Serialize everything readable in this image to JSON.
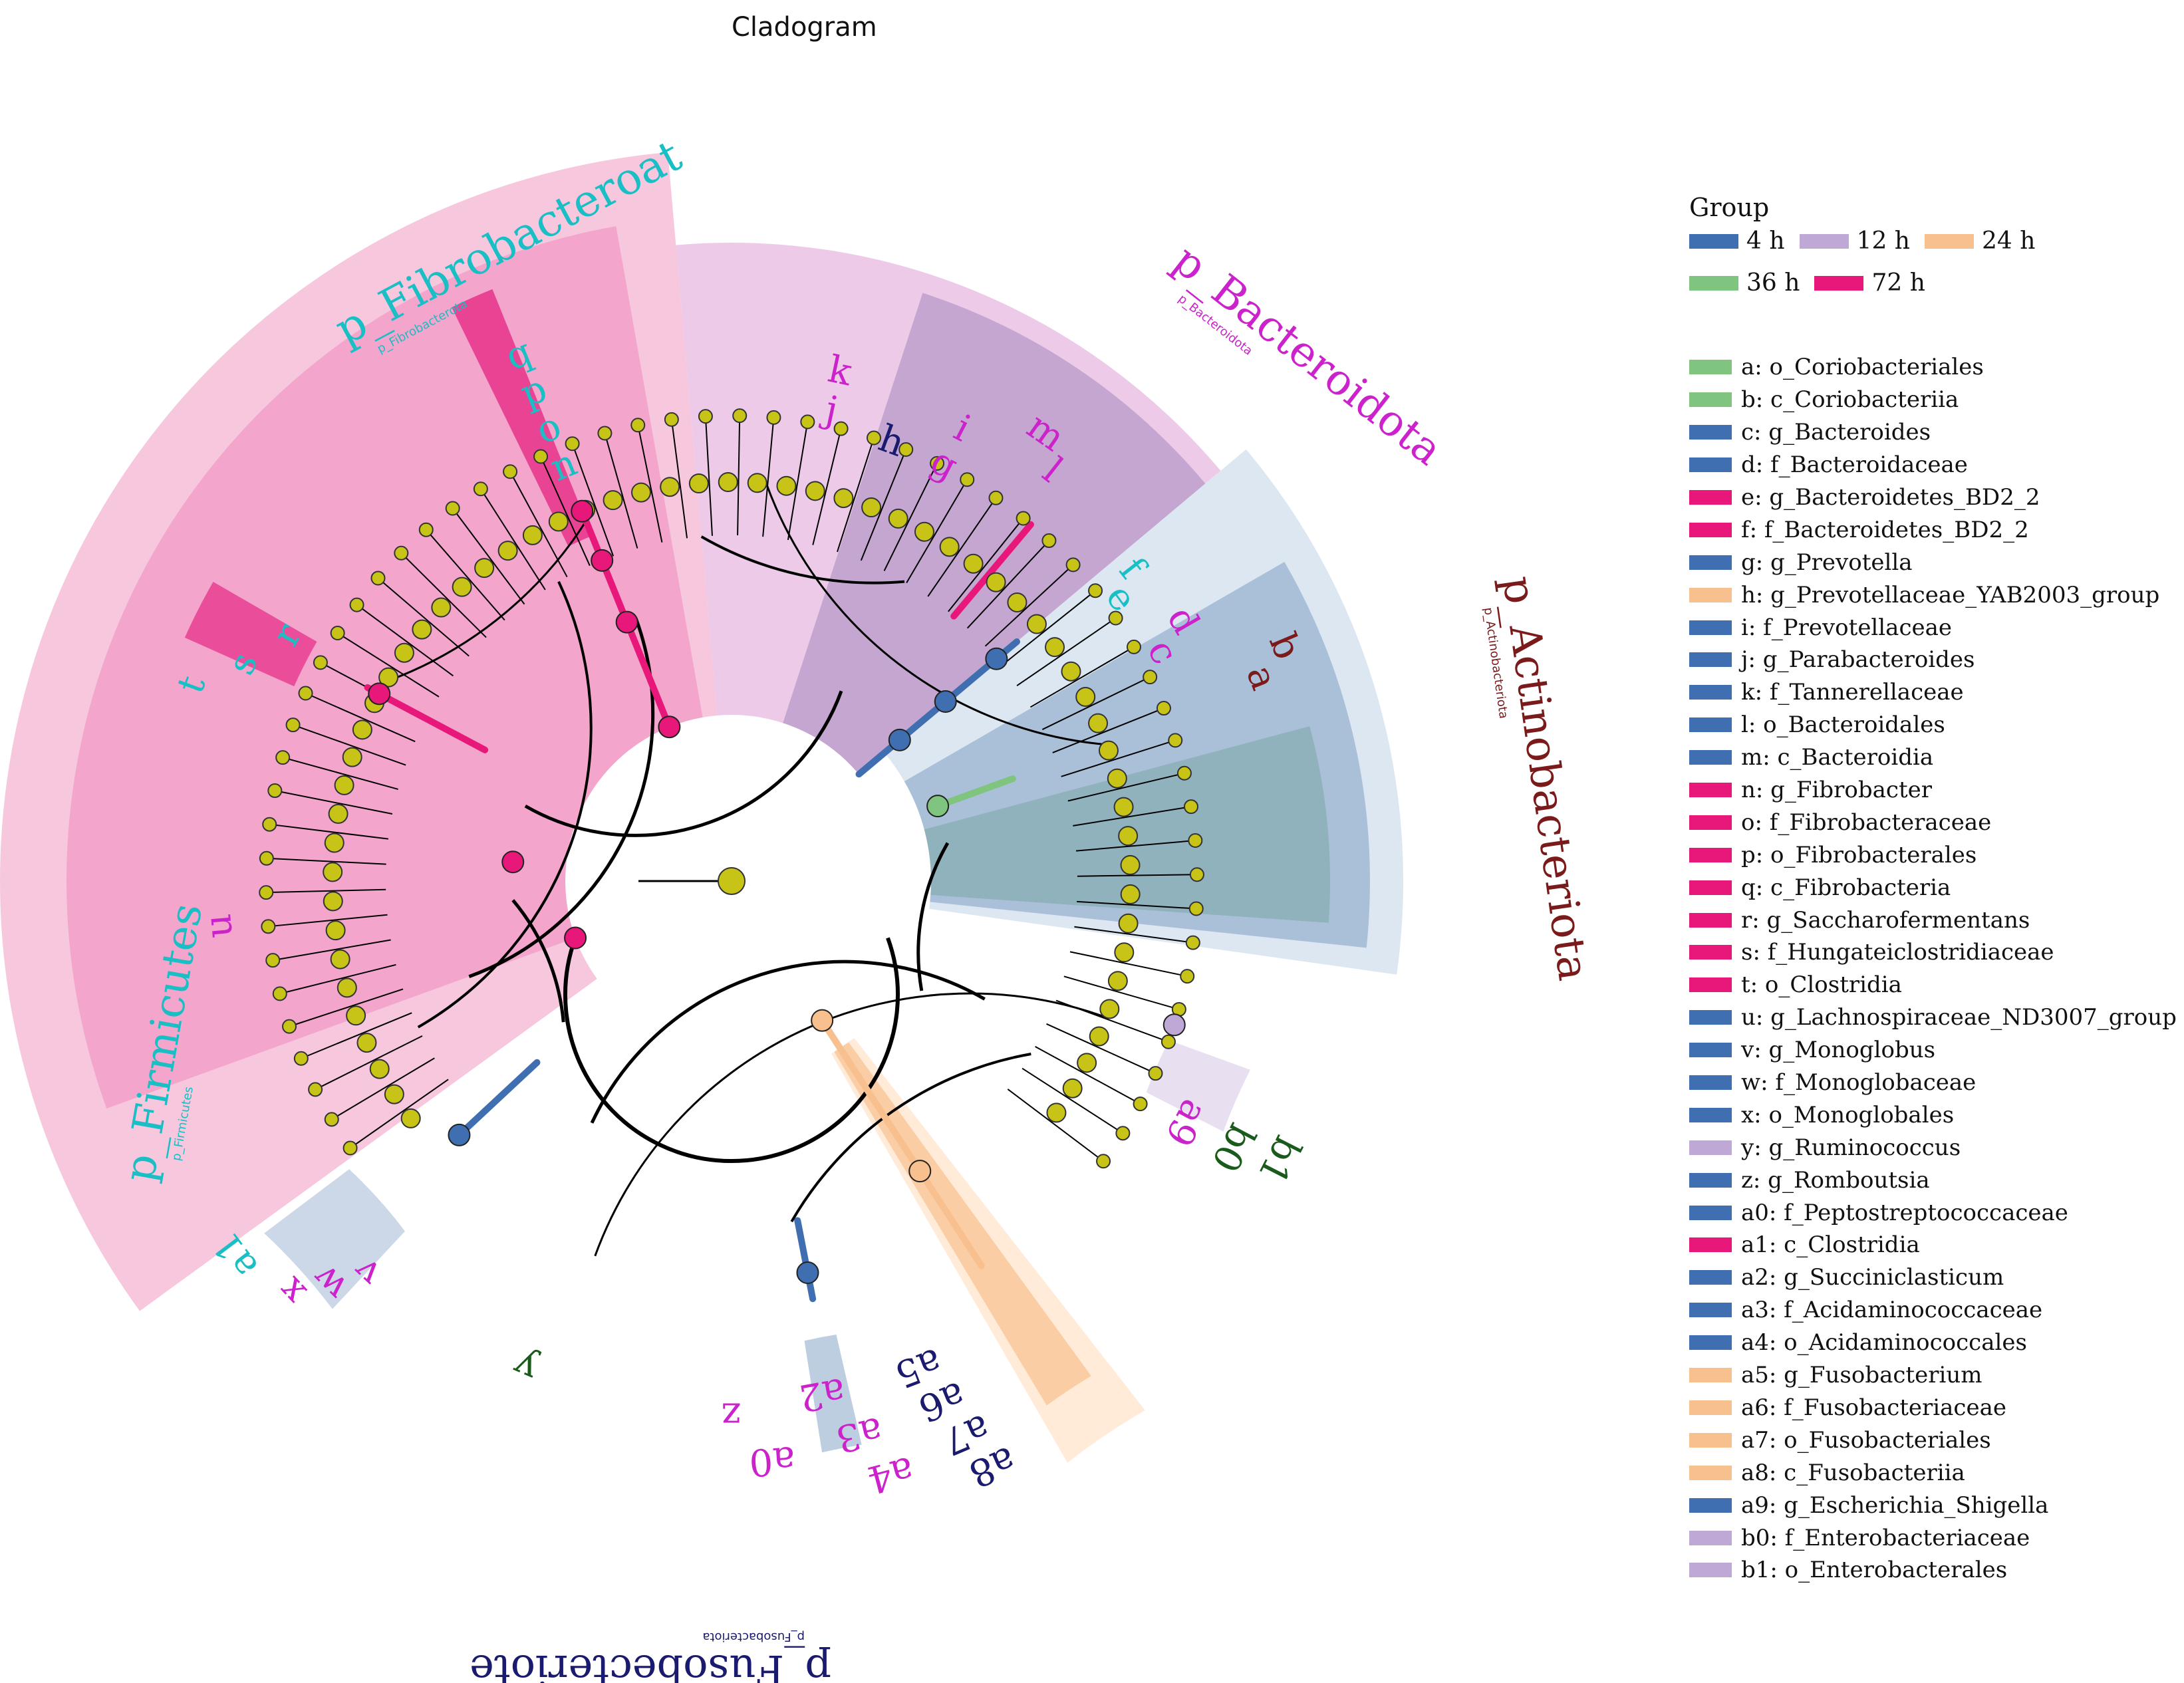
{
  "title": "Cladogram",
  "colors": {
    "4 h": "#3f6fb0",
    "12 h": "#bfa7d6",
    "24 h": "#f8c08f",
    "36 h": "#7fc47f",
    "72 h": "#e8187a",
    "node": "#c7c417",
    "firmicutes_bg": "#f7c4dc",
    "bacteroidota_bg": "#e9c1e4",
    "actino_bg": "#d8e4ef"
  },
  "legend": {
    "group_title": "Group",
    "groups": [
      {
        "label": "4 h",
        "color": "#3f6fb0"
      },
      {
        "label": "12 h",
        "color": "#bfa7d6"
      },
      {
        "label": "24 h",
        "color": "#f8c08f"
      },
      {
        "label": "36 h",
        "color": "#7fc47f"
      },
      {
        "label": "72 h",
        "color": "#e8187a"
      }
    ],
    "taxa": [
      {
        "key": "a",
        "label": "a: o_Coriobacteriales",
        "color": "#7fc47f"
      },
      {
        "key": "b",
        "label": "b: c_Coriobacteriia",
        "color": "#7fc47f"
      },
      {
        "key": "c",
        "label": "c: g_Bacteroides",
        "color": "#3f6fb0"
      },
      {
        "key": "d",
        "label": "d: f_Bacteroidaceae",
        "color": "#3f6fb0"
      },
      {
        "key": "e",
        "label": "e: g_Bacteroidetes_BD2_2",
        "color": "#e8187a"
      },
      {
        "key": "f",
        "label": "f: f_Bacteroidetes_BD2_2",
        "color": "#e8187a"
      },
      {
        "key": "g",
        "label": "g: g_Prevotella",
        "color": "#3f6fb0"
      },
      {
        "key": "h",
        "label": "h: g_Prevotellaceae_YAB2003_group",
        "color": "#f8c08f"
      },
      {
        "key": "i",
        "label": "i: f_Prevotellaceae",
        "color": "#3f6fb0"
      },
      {
        "key": "j",
        "label": "j: g_Parabacteroides",
        "color": "#3f6fb0"
      },
      {
        "key": "k",
        "label": "k: f_Tannerellaceae",
        "color": "#3f6fb0"
      },
      {
        "key": "l",
        "label": "l: o_Bacteroidales",
        "color": "#3f6fb0"
      },
      {
        "key": "m",
        "label": "m: c_Bacteroidia",
        "color": "#3f6fb0"
      },
      {
        "key": "n",
        "label": "n: g_Fibrobacter",
        "color": "#e8187a"
      },
      {
        "key": "o",
        "label": "o: f_Fibrobacteraceae",
        "color": "#e8187a"
      },
      {
        "key": "p",
        "label": "p: o_Fibrobacterales",
        "color": "#e8187a"
      },
      {
        "key": "q",
        "label": "q: c_Fibrobacteria",
        "color": "#e8187a"
      },
      {
        "key": "r",
        "label": "r: g_Saccharofermentans",
        "color": "#e8187a"
      },
      {
        "key": "s",
        "label": "s: f_Hungateiclostridiaceae",
        "color": "#e8187a"
      },
      {
        "key": "t",
        "label": "t: o_Clostridia",
        "color": "#e8187a"
      },
      {
        "key": "u",
        "label": "u: g_Lachnospiraceae_ND3007_group",
        "color": "#3f6fb0"
      },
      {
        "key": "v",
        "label": "v: g_Monoglobus",
        "color": "#3f6fb0"
      },
      {
        "key": "w",
        "label": "w: f_Monoglobaceae",
        "color": "#3f6fb0"
      },
      {
        "key": "x",
        "label": "x: o_Monoglobales",
        "color": "#3f6fb0"
      },
      {
        "key": "y",
        "label": "y: g_Ruminococcus",
        "color": "#bfa7d6"
      },
      {
        "key": "z",
        "label": "z: g_Romboutsia",
        "color": "#3f6fb0"
      },
      {
        "key": "a0",
        "label": "a0: f_Peptostreptococcaceae",
        "color": "#3f6fb0"
      },
      {
        "key": "a1",
        "label": "a1: c_Clostridia",
        "color": "#e8187a"
      },
      {
        "key": "a2",
        "label": "a2: g_Succiniclasticum",
        "color": "#3f6fb0"
      },
      {
        "key": "a3",
        "label": "a3: f_Acidaminococcaceae",
        "color": "#3f6fb0"
      },
      {
        "key": "a4",
        "label": "a4: o_Acidaminococcales",
        "color": "#3f6fb0"
      },
      {
        "key": "a5",
        "label": "a5: g_Fusobacterium",
        "color": "#f8c08f"
      },
      {
        "key": "a6",
        "label": "a6: f_Fusobacteriaceae",
        "color": "#f8c08f"
      },
      {
        "key": "a7",
        "label": "a7: o_Fusobacteriales",
        "color": "#f8c08f"
      },
      {
        "key": "a8",
        "label": "a8: c_Fusobacteriia",
        "color": "#f8c08f"
      },
      {
        "key": "a9",
        "label": "a9: g_Escherichia_Shigella",
        "color": "#3f6fb0"
      },
      {
        "key": "b0",
        "label": "b0: f_Enterobacteriaceae",
        "color": "#bfa7d6"
      },
      {
        "key": "b1",
        "label": "b1: o_Enterobacterales",
        "color": "#bfa7d6"
      }
    ]
  },
  "phyla": [
    {
      "label": "p_Fibrobacteroat",
      "color": "#19bfc4",
      "sub": "p_Fibrobacterota"
    },
    {
      "label": "p_Bacteroidota",
      "color": "#cc22cc",
      "sub": "p_Bacteroidota"
    },
    {
      "label": "p_Actinobacteriota",
      "color": "#7a1a1a",
      "sub": "p_Actinobacteriota"
    },
    {
      "label": "p_Firmicutes",
      "color": "#19bfc4",
      "sub": "p_Firmicutes"
    },
    {
      "label": "p_Fusobecteriote",
      "color": "#1a1a6e",
      "sub": "p_Fusobacteriota"
    }
  ],
  "clade_labels": [
    {
      "key": "q",
      "color": "#19bfc4"
    },
    {
      "key": "p",
      "color": "#19bfc4"
    },
    {
      "key": "o",
      "color": "#19bfc4"
    },
    {
      "key": "n",
      "color": "#19bfc4"
    },
    {
      "key": "k",
      "color": "#cc22cc"
    },
    {
      "key": "j",
      "color": "#cc22cc"
    },
    {
      "key": "h",
      "color": "#1a1a6e"
    },
    {
      "key": "i",
      "color": "#cc22cc"
    },
    {
      "key": "g",
      "color": "#cc22cc"
    },
    {
      "key": "m",
      "color": "#cc22cc"
    },
    {
      "key": "l",
      "color": "#cc22cc"
    },
    {
      "key": "f",
      "color": "#19bfc4"
    },
    {
      "key": "e",
      "color": "#19bfc4"
    },
    {
      "key": "d",
      "color": "#cc22cc"
    },
    {
      "key": "c",
      "color": "#cc22cc"
    },
    {
      "key": "b",
      "color": "#7a1a1a"
    },
    {
      "key": "a",
      "color": "#7a1a1a"
    },
    {
      "key": "t",
      "color": "#19bfc4"
    },
    {
      "key": "s",
      "color": "#19bfc4"
    },
    {
      "key": "r",
      "color": "#19bfc4"
    },
    {
      "key": "u",
      "color": "#cc22cc"
    },
    {
      "key": "a1",
      "color": "#19bfc4"
    },
    {
      "key": "x",
      "color": "#cc22cc"
    },
    {
      "key": "w",
      "color": "#cc22cc"
    },
    {
      "key": "v",
      "color": "#cc22cc"
    },
    {
      "key": "y",
      "color": "#1a5a1a"
    },
    {
      "key": "z",
      "color": "#cc22cc"
    },
    {
      "key": "a0",
      "color": "#cc22cc"
    },
    {
      "key": "a2",
      "color": "#cc22cc"
    },
    {
      "key": "a3",
      "color": "#cc22cc"
    },
    {
      "key": "a4",
      "color": "#cc22cc"
    },
    {
      "key": "a5",
      "color": "#1a1a6e"
    },
    {
      "key": "a6",
      "color": "#1a1a6e"
    },
    {
      "key": "a7",
      "color": "#1a1a6e"
    },
    {
      "key": "a8",
      "color": "#1a1a6e"
    },
    {
      "key": "a9",
      "color": "#cc22cc"
    },
    {
      "key": "b0",
      "color": "#1a5a1a"
    },
    {
      "key": "b1",
      "color": "#1a5a1a"
    }
  ]
}
